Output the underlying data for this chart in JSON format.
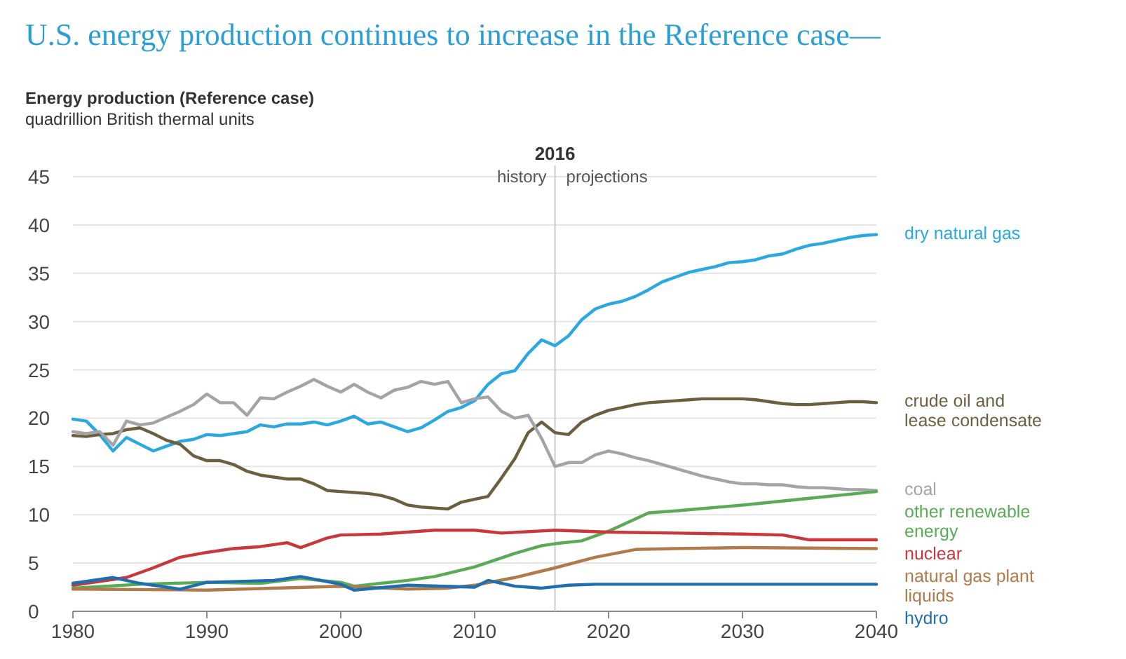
{
  "chart_data": {
    "type": "line",
    "title": "U.S. energy production continues to increase in the Reference case—",
    "subtitle": "Energy production (Reference case)",
    "ylabel": "quadrillion British thermal units",
    "xlim": [
      1980,
      2040
    ],
    "xticks": [
      1980,
      1990,
      2000,
      2010,
      2020,
      2030,
      2040
    ],
    "ylim": [
      0,
      45
    ],
    "yticks": [
      0,
      5,
      10,
      15,
      20,
      25,
      30,
      35,
      40,
      45
    ],
    "grid": "y",
    "legend": false,
    "line_style": "solid",
    "marker": "none",
    "ref_lines": [
      {
        "axis": "x",
        "value": 2016,
        "label": "2016",
        "color": "#cccccc"
      }
    ],
    "annotations": [
      "history",
      "projections"
    ],
    "series": [
      {
        "name": "dry natural gas",
        "color": "#2aa8e0",
        "x": [
          1980,
          1981,
          1982,
          1983,
          1984,
          1985,
          1986,
          1987,
          1988,
          1989,
          1990,
          1991,
          1992,
          1993,
          1994,
          1995,
          1996,
          1997,
          1998,
          1999,
          2000,
          2001,
          2002,
          2003,
          2004,
          2005,
          2006,
          2007,
          2008,
          2009,
          2010,
          2011,
          2012,
          2013,
          2014,
          2015,
          2016,
          2017,
          2018,
          2019,
          2020,
          2021,
          2022,
          2023,
          2024,
          2025,
          2026,
          2027,
          2028,
          2029,
          2030,
          2031,
          2032,
          2033,
          2034,
          2035,
          2036,
          2037,
          2038,
          2039,
          2040
        ],
        "values": [
          19.9,
          19.7,
          18.3,
          16.6,
          18.0,
          17.3,
          16.6,
          17.1,
          17.6,
          17.8,
          18.3,
          18.2,
          18.4,
          18.6,
          19.3,
          19.1,
          19.4,
          19.4,
          19.6,
          19.3,
          19.7,
          20.2,
          19.4,
          19.6,
          19.1,
          18.6,
          19.0,
          19.8,
          20.7,
          21.1,
          21.8,
          23.5,
          24.6,
          24.9,
          26.7,
          28.1,
          27.5,
          28.5,
          30.2,
          31.3,
          31.8,
          32.1,
          32.6,
          33.3,
          34.1,
          34.6,
          35.1,
          35.4,
          35.7,
          36.1,
          36.2,
          36.4,
          36.8,
          37.0,
          37.5,
          37.9,
          38.1,
          38.4,
          38.7,
          38.9,
          39.0
        ]
      },
      {
        "name": "crude oil and lease condensate",
        "color": "#6b5f40",
        "x": [
          1980,
          1981,
          1982,
          1983,
          1984,
          1985,
          1986,
          1987,
          1988,
          1989,
          1990,
          1991,
          1992,
          1993,
          1994,
          1995,
          1996,
          1997,
          1998,
          1999,
          2000,
          2001,
          2002,
          2003,
          2004,
          2005,
          2006,
          2007,
          2008,
          2009,
          2010,
          2011,
          2012,
          2013,
          2014,
          2015,
          2016,
          2017,
          2018,
          2019,
          2020,
          2021,
          2022,
          2023,
          2024,
          2025,
          2026,
          2027,
          2028,
          2029,
          2030,
          2031,
          2032,
          2033,
          2034,
          2035,
          2036,
          2037,
          2038,
          2039,
          2040
        ],
        "values": [
          18.2,
          18.1,
          18.3,
          18.4,
          18.8,
          19.0,
          18.4,
          17.7,
          17.3,
          16.1,
          15.6,
          15.6,
          15.2,
          14.5,
          14.1,
          13.9,
          13.7,
          13.7,
          13.2,
          12.5,
          12.4,
          12.3,
          12.2,
          12.0,
          11.6,
          11.0,
          10.8,
          10.7,
          10.6,
          11.3,
          11.6,
          11.9,
          13.8,
          15.8,
          18.5,
          19.6,
          18.5,
          18.3,
          19.6,
          20.3,
          20.8,
          21.1,
          21.4,
          21.6,
          21.7,
          21.8,
          21.9,
          22.0,
          22.0,
          22.0,
          22.0,
          21.9,
          21.7,
          21.5,
          21.4,
          21.4,
          21.5,
          21.6,
          21.7,
          21.7,
          21.6
        ]
      },
      {
        "name": "coal",
        "color": "#a3a3a8",
        "x": [
          1980,
          1981,
          1982,
          1983,
          1984,
          1985,
          1986,
          1987,
          1988,
          1989,
          1990,
          1991,
          1992,
          1993,
          1994,
          1995,
          1996,
          1997,
          1998,
          1999,
          2000,
          2001,
          2002,
          2003,
          2004,
          2005,
          2006,
          2007,
          2008,
          2009,
          2010,
          2011,
          2012,
          2013,
          2014,
          2015,
          2016,
          2017,
          2018,
          2019,
          2020,
          2021,
          2022,
          2023,
          2024,
          2025,
          2026,
          2027,
          2028,
          2029,
          2030,
          2031,
          2032,
          2033,
          2034,
          2035,
          2036,
          2037,
          2038,
          2039,
          2040
        ],
        "values": [
          18.6,
          18.4,
          18.6,
          17.2,
          19.7,
          19.3,
          19.5,
          20.1,
          20.7,
          21.4,
          22.5,
          21.6,
          21.6,
          20.3,
          22.1,
          22.0,
          22.7,
          23.3,
          24.0,
          23.3,
          22.7,
          23.5,
          22.7,
          22.1,
          22.9,
          23.2,
          23.8,
          23.5,
          23.8,
          21.6,
          22.0,
          22.2,
          20.7,
          20.0,
          20.3,
          17.9,
          15.0,
          15.4,
          15.4,
          16.2,
          16.6,
          16.3,
          15.9,
          15.6,
          15.2,
          14.8,
          14.4,
          14.0,
          13.7,
          13.4,
          13.2,
          13.2,
          13.1,
          13.1,
          12.9,
          12.8,
          12.8,
          12.7,
          12.6,
          12.6,
          12.5
        ]
      },
      {
        "name": "other renewable energy",
        "color": "#5aab55",
        "x": [
          1980,
          1985,
          1990,
          1994,
          1997,
          2000,
          2001,
          2003,
          2005,
          2007,
          2010,
          2013,
          2015,
          2016,
          2018,
          2020,
          2023,
          2025,
          2030,
          2035,
          2040
        ],
        "values": [
          2.4,
          2.8,
          3.0,
          2.9,
          3.4,
          3.0,
          2.6,
          2.9,
          3.2,
          3.6,
          4.6,
          6.0,
          6.8,
          7.0,
          7.3,
          8.3,
          10.2,
          10.4,
          11.0,
          11.7,
          12.4
        ]
      },
      {
        "name": "nuclear",
        "color": "#c8373c",
        "x": [
          1980,
          1984,
          1986,
          1988,
          1990,
          1992,
          1994,
          1996,
          1997,
          1999,
          2000,
          2003,
          2005,
          2007,
          2010,
          2012,
          2016,
          2020,
          2025,
          2030,
          2033,
          2035,
          2040
        ],
        "values": [
          2.7,
          3.5,
          4.5,
          5.6,
          6.1,
          6.5,
          6.7,
          7.1,
          6.6,
          7.6,
          7.9,
          8.0,
          8.2,
          8.4,
          8.4,
          8.1,
          8.4,
          8.2,
          8.1,
          8.0,
          7.9,
          7.4,
          7.4
        ]
      },
      {
        "name": "natural gas plant liquids",
        "color": "#b07a4a",
        "x": [
          1980,
          1990,
          2000,
          2005,
          2008,
          2010,
          2013,
          2016,
          2019,
          2022,
          2025,
          2030,
          2040
        ],
        "values": [
          2.3,
          2.2,
          2.6,
          2.3,
          2.4,
          2.7,
          3.5,
          4.5,
          5.6,
          6.4,
          6.5,
          6.6,
          6.5
        ]
      },
      {
        "name": "hydro",
        "color": "#1f6fb0",
        "x": [
          1980,
          1983,
          1985,
          1988,
          1990,
          1995,
          1997,
          2000,
          2001,
          2005,
          2010,
          2011,
          2013,
          2015,
          2017,
          2019,
          2040
        ],
        "values": [
          2.9,
          3.5,
          2.9,
          2.3,
          3.0,
          3.2,
          3.6,
          2.8,
          2.2,
          2.7,
          2.5,
          3.2,
          2.6,
          2.4,
          2.7,
          2.8,
          2.8
        ]
      }
    ]
  }
}
